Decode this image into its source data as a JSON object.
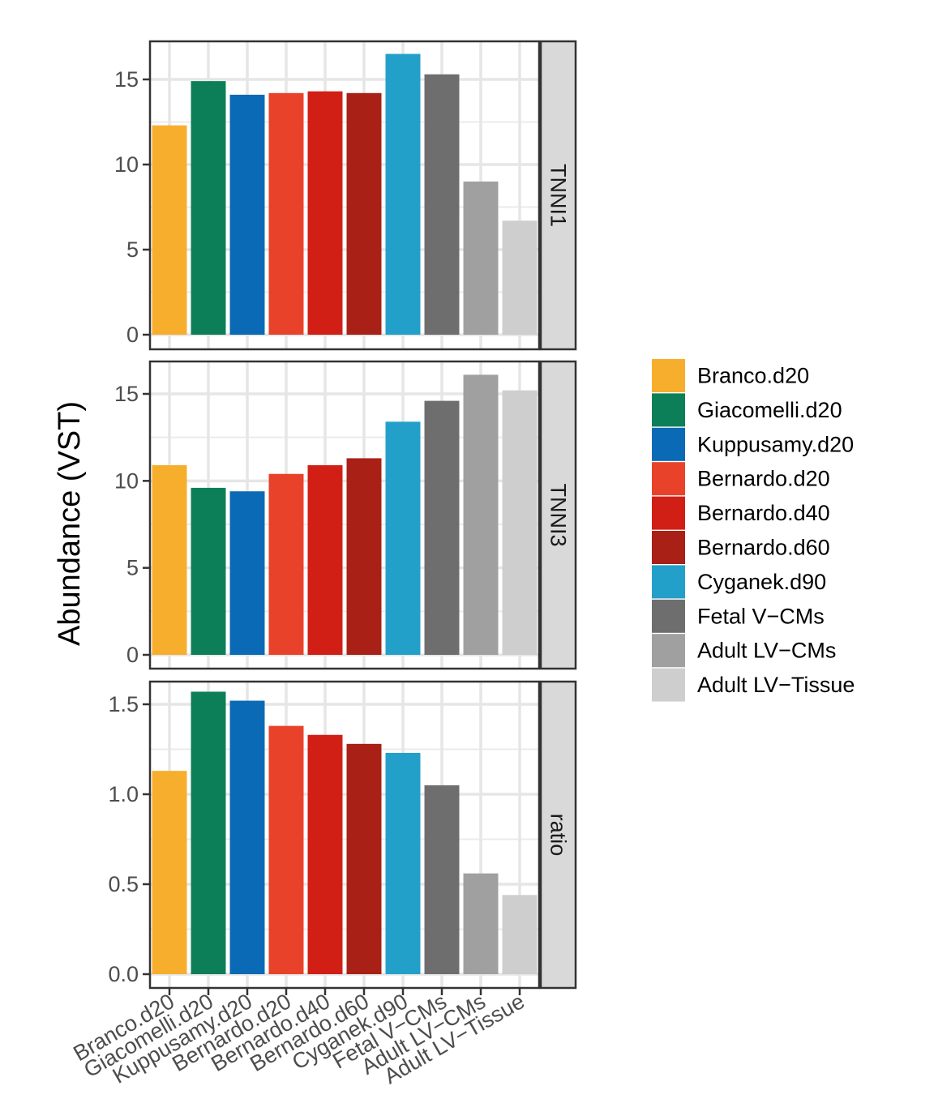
{
  "chart_data": {
    "type": "bar",
    "ylabel": "Abundance (VST)",
    "xlabel": "",
    "grid": true,
    "legend_position": "right",
    "categories": [
      "Branco.d20",
      "Giacomelli.d20",
      "Kuppusamy.d20",
      "Bernardo.d20",
      "Bernardo.d40",
      "Bernardo.d60",
      "Cyganek.d90",
      "Fetal V−CMs",
      "Adult LV−CMs",
      "Adult LV−Tissue"
    ],
    "colors": [
      "#F7AE2D",
      "#0C7F58",
      "#0A6AB5",
      "#E8432A",
      "#D11F16",
      "#A82016",
      "#23A0C9",
      "#6E6E6E",
      "#A0A0A0",
      "#CECECE"
    ],
    "panels": [
      {
        "strip": "TNNI1",
        "ylim": [
          0,
          17
        ],
        "ticks": [
          0,
          5,
          10,
          15
        ],
        "tick_labels": [
          "0",
          "5",
          "10",
          "15"
        ],
        "values": [
          12.3,
          14.9,
          14.1,
          14.2,
          14.3,
          14.2,
          16.5,
          15.3,
          9.0,
          6.7
        ]
      },
      {
        "strip": "TNNI3",
        "ylim": [
          0,
          16.8
        ],
        "ticks": [
          0,
          5,
          10,
          15
        ],
        "tick_labels": [
          "0",
          "5",
          "10",
          "15"
        ],
        "values": [
          10.9,
          9.6,
          9.4,
          10.4,
          10.9,
          11.3,
          13.4,
          14.6,
          16.1,
          15.2
        ]
      },
      {
        "strip": "ratio",
        "ylim": [
          0,
          1.65
        ],
        "ticks": [
          0,
          0.5,
          1.0,
          1.5
        ],
        "tick_labels": [
          "0.0",
          "0.5",
          "1.0",
          "1.5"
        ],
        "values": [
          1.13,
          1.57,
          1.52,
          1.38,
          1.33,
          1.28,
          1.23,
          1.05,
          0.56,
          0.44
        ]
      }
    ],
    "legend": [
      "Branco.d20",
      "Giacomelli.d20",
      "Kuppusamy.d20",
      "Bernardo.d20",
      "Bernardo.d40",
      "Bernardo.d60",
      "Cyganek.d90",
      "Fetal V−CMs",
      "Adult LV−CMs",
      "Adult LV−Tissue"
    ]
  }
}
